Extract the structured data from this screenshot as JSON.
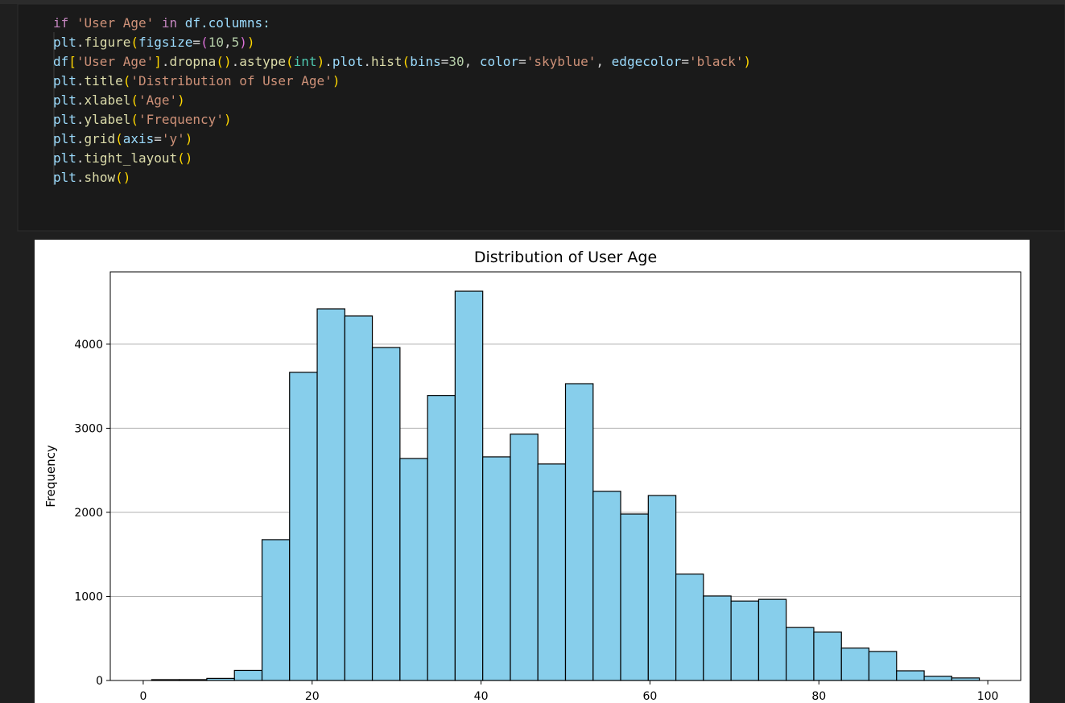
{
  "code": {
    "lines": [
      [
        {
          "text": "if",
          "color": "#c586c0"
        },
        {
          "text": " ",
          "color": "#d4d4d4"
        },
        {
          "text": "'User Age'",
          "color": "#ce9178"
        },
        {
          "text": " ",
          "color": "#d4d4d4"
        },
        {
          "text": "in",
          "color": "#c586c0"
        },
        {
          "text": " df.columns:",
          "color": "#9cdcfe"
        }
      ],
      [
        {
          "text": "    plt",
          "color": "#9cdcfe"
        },
        {
          "text": ".",
          "color": "#d4d4d4"
        },
        {
          "text": "figure",
          "color": "#dcdcaa"
        },
        {
          "text": "(",
          "color": "#ffd700"
        },
        {
          "text": "figsize",
          "color": "#9cdcfe"
        },
        {
          "text": "=",
          "color": "#d4d4d4"
        },
        {
          "text": "(",
          "color": "#da70d6"
        },
        {
          "text": "10",
          "color": "#b5cea8"
        },
        {
          "text": ",",
          "color": "#d4d4d4"
        },
        {
          "text": "5",
          "color": "#b5cea8"
        },
        {
          "text": ")",
          "color": "#da70d6"
        },
        {
          "text": ")",
          "color": "#ffd700"
        }
      ],
      [
        {
          "text": "    df",
          "color": "#9cdcfe"
        },
        {
          "text": "[",
          "color": "#ffd700"
        },
        {
          "text": "'User Age'",
          "color": "#ce9178"
        },
        {
          "text": "]",
          "color": "#ffd700"
        },
        {
          "text": ".",
          "color": "#d4d4d4"
        },
        {
          "text": "dropna",
          "color": "#dcdcaa"
        },
        {
          "text": "()",
          "color": "#ffd700"
        },
        {
          "text": ".",
          "color": "#d4d4d4"
        },
        {
          "text": "astype",
          "color": "#dcdcaa"
        },
        {
          "text": "(",
          "color": "#ffd700"
        },
        {
          "text": "int",
          "color": "#4ec9b0"
        },
        {
          "text": ")",
          "color": "#ffd700"
        },
        {
          "text": ".",
          "color": "#d4d4d4"
        },
        {
          "text": "plot",
          "color": "#9cdcfe"
        },
        {
          "text": ".",
          "color": "#d4d4d4"
        },
        {
          "text": "hist",
          "color": "#dcdcaa"
        },
        {
          "text": "(",
          "color": "#ffd700"
        },
        {
          "text": "bins",
          "color": "#9cdcfe"
        },
        {
          "text": "=",
          "color": "#d4d4d4"
        },
        {
          "text": "30",
          "color": "#b5cea8"
        },
        {
          "text": ", ",
          "color": "#d4d4d4"
        },
        {
          "text": "color",
          "color": "#9cdcfe"
        },
        {
          "text": "=",
          "color": "#d4d4d4"
        },
        {
          "text": "'skyblue'",
          "color": "#ce9178"
        },
        {
          "text": ", ",
          "color": "#d4d4d4"
        },
        {
          "text": "edgecolor",
          "color": "#9cdcfe"
        },
        {
          "text": "=",
          "color": "#d4d4d4"
        },
        {
          "text": "'black'",
          "color": "#ce9178"
        },
        {
          "text": ")",
          "color": "#ffd700"
        }
      ],
      [
        {
          "text": "    plt",
          "color": "#9cdcfe"
        },
        {
          "text": ".",
          "color": "#d4d4d4"
        },
        {
          "text": "title",
          "color": "#dcdcaa"
        },
        {
          "text": "(",
          "color": "#ffd700"
        },
        {
          "text": "'Distribution of User Age'",
          "color": "#ce9178"
        },
        {
          "text": ")",
          "color": "#ffd700"
        }
      ],
      [
        {
          "text": "    plt",
          "color": "#9cdcfe"
        },
        {
          "text": ".",
          "color": "#d4d4d4"
        },
        {
          "text": "xlabel",
          "color": "#dcdcaa"
        },
        {
          "text": "(",
          "color": "#ffd700"
        },
        {
          "text": "'Age'",
          "color": "#ce9178"
        },
        {
          "text": ")",
          "color": "#ffd700"
        }
      ],
      [
        {
          "text": "    plt",
          "color": "#9cdcfe"
        },
        {
          "text": ".",
          "color": "#d4d4d4"
        },
        {
          "text": "ylabel",
          "color": "#dcdcaa"
        },
        {
          "text": "(",
          "color": "#ffd700"
        },
        {
          "text": "'Frequency'",
          "color": "#ce9178"
        },
        {
          "text": ")",
          "color": "#ffd700"
        }
      ],
      [
        {
          "text": "    plt",
          "color": "#9cdcfe"
        },
        {
          "text": ".",
          "color": "#d4d4d4"
        },
        {
          "text": "grid",
          "color": "#dcdcaa"
        },
        {
          "text": "(",
          "color": "#ffd700"
        },
        {
          "text": "axis",
          "color": "#9cdcfe"
        },
        {
          "text": "=",
          "color": "#d4d4d4"
        },
        {
          "text": "'y'",
          "color": "#ce9178"
        },
        {
          "text": ")",
          "color": "#ffd700"
        }
      ],
      [
        {
          "text": "    plt",
          "color": "#9cdcfe"
        },
        {
          "text": ".",
          "color": "#d4d4d4"
        },
        {
          "text": "tight_layout",
          "color": "#dcdcaa"
        },
        {
          "text": "()",
          "color": "#ffd700"
        }
      ],
      [
        {
          "text": "    plt",
          "color": "#9cdcfe"
        },
        {
          "text": ".",
          "color": "#d4d4d4"
        },
        {
          "text": "show",
          "color": "#dcdcaa"
        },
        {
          "text": "()",
          "color": "#ffd700"
        }
      ]
    ]
  },
  "chart_data": {
    "type": "histogram",
    "title": "Distribution of User Age",
    "ylabel": "Frequency",
    "bins": [
      1,
      4.27,
      7.53,
      10.8,
      14.07,
      17.33,
      20.6,
      23.87,
      27.13,
      30.4,
      33.67,
      36.93,
      40.2,
      43.47,
      46.73,
      50,
      53.27,
      56.53,
      59.8,
      63.07,
      66.33,
      69.6,
      72.87,
      76.13,
      79.4,
      82.67,
      85.93,
      89.2,
      92.47,
      95.73,
      99
    ],
    "values": [
      10,
      10,
      25,
      120,
      1675,
      3665,
      4420,
      4335,
      3960,
      2640,
      3390,
      4630,
      2660,
      2930,
      2575,
      3530,
      2250,
      1980,
      2200,
      1265,
      1005,
      945,
      965,
      630,
      575,
      385,
      345,
      115,
      50,
      30
    ],
    "color": "#87ceeb",
    "edgecolor": "#000000",
    "xlim": [
      -3.9,
      103.9
    ],
    "xticks": [
      0,
      20,
      40,
      60,
      80,
      100
    ],
    "ylim": [
      0,
      4860
    ],
    "yticks": [
      0,
      1000,
      2000,
      3000,
      4000
    ],
    "grid": "y"
  }
}
